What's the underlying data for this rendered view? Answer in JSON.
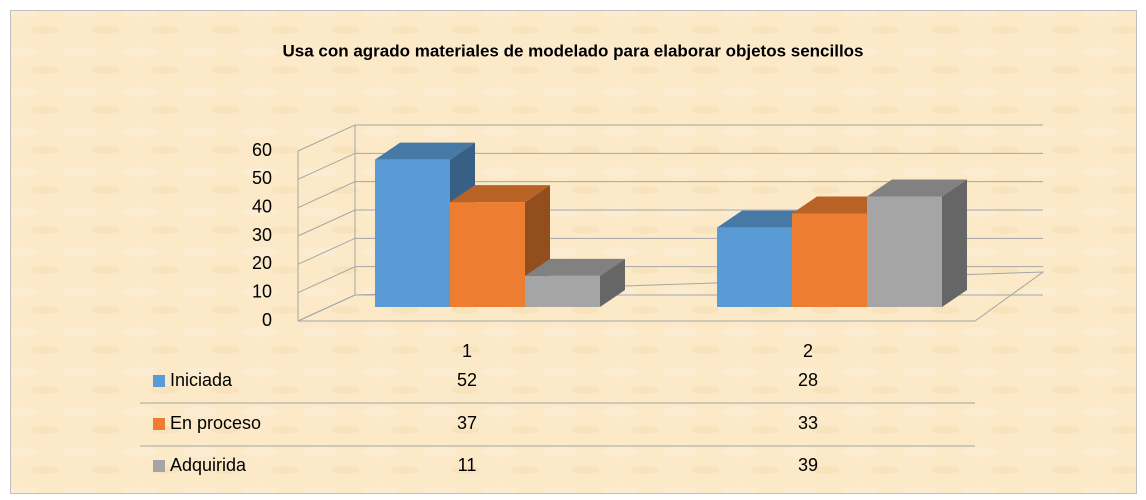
{
  "chart_data": {
    "type": "bar3d",
    "title": "Usa con agrado  materiales de modelado para elaborar objetos sencillos",
    "categories": [
      "1",
      "2"
    ],
    "series": [
      {
        "name": "Iniciada",
        "color": "#5b9bd5",
        "values": [
          52,
          28
        ]
      },
      {
        "name": "En proceso",
        "color": "#ed7d31",
        "values": [
          37,
          33
        ]
      },
      {
        "name": "Adquirida",
        "color": "#a5a5a5",
        "values": [
          11,
          39
        ]
      }
    ],
    "ylim": [
      0,
      60
    ],
    "yticks": [
      0,
      10,
      20,
      30,
      40,
      50,
      60
    ],
    "grid": true,
    "data_table": true
  }
}
